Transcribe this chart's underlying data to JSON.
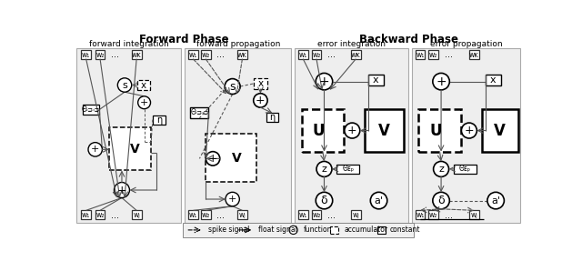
{
  "title_forward": "Forward Phase",
  "title_backward": "Backward Phase",
  "subtitle1": "forward integration",
  "subtitle2": "forward propagation",
  "subtitle3": "error integration",
  "subtitle4": "error propagation",
  "bg_color": "#ffffff",
  "panel_bg": "#eeeeee",
  "panel_border": "#aaaaaa",
  "box_border": "#333333",
  "dark_border": "#000000"
}
